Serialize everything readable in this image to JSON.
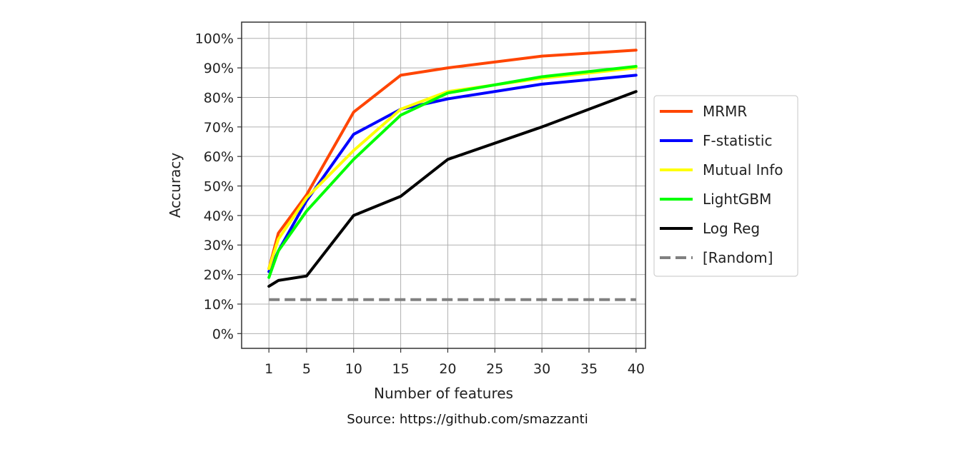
{
  "chart_data": {
    "type": "line",
    "xlabel": "Number of features",
    "ylabel": "Accuracy",
    "xlim": [
      -1.9,
      41.0
    ],
    "ylim": [
      -0.05,
      1.055
    ],
    "xticks": [
      1,
      5,
      10,
      15,
      20,
      25,
      30,
      35,
      40
    ],
    "yticks": [
      0,
      0.1,
      0.2,
      0.3,
      0.4,
      0.5,
      0.6,
      0.7,
      0.8,
      0.9,
      1.0
    ],
    "ytick_labels": [
      "0%",
      "10%",
      "20%",
      "30%",
      "40%",
      "50%",
      "60%",
      "70%",
      "80%",
      "90%",
      "100%"
    ],
    "grid": true,
    "legend_position": "outside right",
    "series": [
      {
        "name": "MRMR",
        "color": "#ff4500",
        "dash": false,
        "points": [
          [
            1,
            0.22
          ],
          [
            2,
            0.34
          ],
          [
            5,
            0.47
          ],
          [
            10,
            0.75
          ],
          [
            15,
            0.875
          ],
          [
            20,
            0.9
          ],
          [
            30,
            0.94
          ],
          [
            40,
            0.96
          ]
        ]
      },
      {
        "name": "F-statistic",
        "color": "#0000ff",
        "dash": false,
        "points": [
          [
            1,
            0.21
          ],
          [
            2,
            0.28
          ],
          [
            5,
            0.45
          ],
          [
            10,
            0.675
          ],
          [
            15,
            0.76
          ],
          [
            20,
            0.795
          ],
          [
            30,
            0.845
          ],
          [
            40,
            0.875
          ]
        ]
      },
      {
        "name": "Mutual Info",
        "color": "#ffff00",
        "dash": false,
        "points": [
          [
            1,
            0.22
          ],
          [
            2,
            0.32
          ],
          [
            5,
            0.46
          ],
          [
            10,
            0.62
          ],
          [
            15,
            0.76
          ],
          [
            20,
            0.82
          ],
          [
            30,
            0.865
          ],
          [
            40,
            0.9
          ]
        ]
      },
      {
        "name": "LightGBM",
        "color": "#00ff00",
        "dash": false,
        "points": [
          [
            1,
            0.19
          ],
          [
            2,
            0.28
          ],
          [
            5,
            0.415
          ],
          [
            10,
            0.59
          ],
          [
            15,
            0.74
          ],
          [
            20,
            0.815
          ],
          [
            30,
            0.87
          ],
          [
            40,
            0.905
          ]
        ]
      },
      {
        "name": "Log Reg",
        "color": "#000000",
        "dash": false,
        "points": [
          [
            1,
            0.16
          ],
          [
            2,
            0.18
          ],
          [
            5,
            0.195
          ],
          [
            10,
            0.4
          ],
          [
            15,
            0.465
          ],
          [
            20,
            0.59
          ],
          [
            30,
            0.7
          ],
          [
            40,
            0.82
          ]
        ]
      },
      {
        "name": "[Random]",
        "color": "#808080",
        "dash": true,
        "points": [
          [
            1,
            0.115
          ],
          [
            40,
            0.115
          ]
        ]
      }
    ]
  },
  "source_text": "Source: https://github.com/smazzanti"
}
